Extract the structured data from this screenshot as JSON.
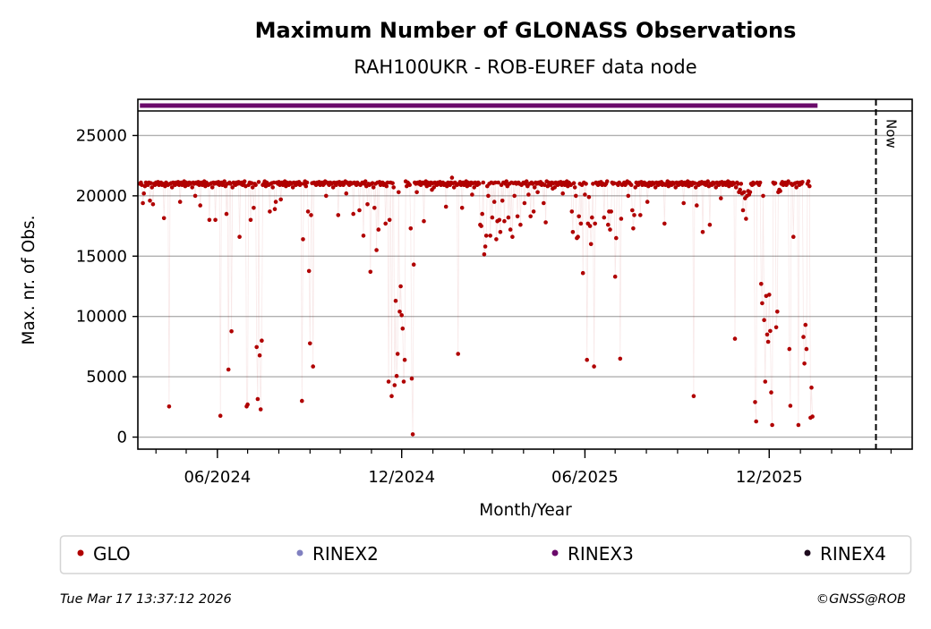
{
  "chart_data": {
    "type": "scatter",
    "title": "Maximum Number of GLONASS Observations",
    "subtitle": "RAH100UKR - ROB-EUREF data node",
    "xlabel": "Month/Year",
    "ylabel": "Max. nr. of Obs.",
    "ylim": [
      -1000,
      28000
    ],
    "xlim": [
      "2024-03-14",
      "2026-04-22"
    ],
    "yticks": [
      0,
      5000,
      10000,
      15000,
      20000,
      25000
    ],
    "ytick_labels": [
      "0",
      "5000",
      "10000",
      "15000",
      "20000",
      "25000"
    ],
    "xticks": [
      "2024-06-01",
      "2024-12-01",
      "2025-06-01",
      "2025-12-01"
    ],
    "xtick_labels": [
      "06/2024",
      "12/2024",
      "06/2025",
      "12/2025"
    ],
    "grid": "horizontal",
    "now_marker": {
      "date": "2026-03-17",
      "label": "Now"
    },
    "legend_position": "bottom",
    "legend": [
      {
        "label": "GLO",
        "color": "#b00000"
      },
      {
        "label": "RINEX2",
        "color": "#8080c0"
      },
      {
        "label": "RINEX3",
        "color": "#6a0a6a"
      },
      {
        "label": "RINEX4",
        "color": "#1e0a1e"
      }
    ],
    "rinex3_availability": {
      "start": "2024-03-16",
      "end": "2026-01-18",
      "color": "#6a0a6a"
    },
    "series": [
      {
        "name": "GLO",
        "color": "#b00000",
        "start_date": "2024-03-16",
        "step_days": 1,
        "values": [
          21000,
          21100,
          20900,
          19400,
          20200,
          20800,
          21100,
          21000,
          20900,
          21100,
          19600,
          21050,
          20700,
          19300,
          21000,
          20900,
          21100,
          21000,
          21150,
          20900,
          21000,
          21100,
          20900,
          21000,
          18150,
          20800,
          21100,
          21000,
          20900,
          2540,
          21000,
          21050,
          20700,
          21100,
          21000,
          20900,
          21100,
          21000,
          21150,
          20900,
          19500,
          21100,
          20900,
          21000,
          21200,
          20800,
          21100,
          21000,
          20900,
          21100,
          21000,
          21050,
          20700,
          21100,
          21000,
          20000,
          21100,
          21000,
          21150,
          20900,
          19200,
          21100,
          20900,
          21000,
          21200,
          20800,
          21100,
          21000,
          20900,
          18000,
          21000,
          21050,
          20700,
          21100,
          21000,
          18000,
          21100,
          21000,
          21150,
          20900,
          1770,
          21100,
          20900,
          21000,
          21200,
          20800,
          18500,
          21000,
          5600,
          21100,
          21000,
          8770,
          20700,
          21100,
          21000,
          20900,
          21100,
          21000,
          21150,
          16600,
          21000,
          21100,
          20900,
          21000,
          21200,
          20800,
          2540,
          2700,
          20900,
          21100,
          18000,
          21050,
          20700,
          19000,
          21000,
          20900,
          7460,
          3150,
          21150,
          6770,
          2300,
          8000,
          20900,
          21000,
          21200,
          20800,
          21100,
          21000,
          20900,
          18700,
          21000,
          21050,
          20700,
          21100,
          18900,
          19500,
          21100,
          21000,
          21150,
          20900,
          19700,
          21100,
          20900,
          21000,
          21200,
          20800,
          21100,
          21000,
          20900,
          21100,
          21000,
          21050,
          20700,
          21100,
          21000,
          20900,
          21100,
          21000,
          21150,
          20900,
          21000,
          3000,
          16400,
          21000,
          21200,
          20800,
          21100,
          18700,
          13770,
          7770,
          18400,
          21050,
          5850,
          21100,
          21000,
          20900,
          21100,
          21000,
          21150,
          20900,
          21000,
          21100,
          20900,
          21000,
          21200,
          20000,
          21100,
          21000,
          20900,
          21100,
          21000,
          21050,
          20700,
          21100,
          21000,
          20900,
          21100,
          18400,
          21150,
          20900,
          21000,
          21100,
          20900,
          21000,
          21200,
          20200,
          21100,
          21000,
          20900,
          21100,
          21000,
          21050,
          18500,
          21100,
          21000,
          20900,
          21100,
          21000,
          18800,
          20900,
          21000,
          21100,
          16700,
          21000,
          21200,
          20800,
          19300,
          21000,
          20900,
          13700,
          21000,
          21050,
          20700,
          19000,
          21000,
          15500,
          21100,
          17200,
          21150,
          20900,
          21000,
          21100,
          20900,
          21000,
          17700,
          20800,
          21100,
          4600,
          18000,
          21100,
          3400,
          21050,
          20700,
          4300,
          11300,
          5070,
          6900,
          20300,
          10400,
          12500,
          10100,
          9000,
          4600,
          6400,
          21200,
          20800,
          21100,
          21000,
          20900,
          17300,
          4850,
          230,
          14300,
          21100,
          21000,
          20300,
          21100,
          21000,
          21150,
          20900,
          21000,
          21100,
          17900,
          21000,
          21200,
          20800,
          21100,
          21000,
          20900,
          21100,
          20500,
          21050,
          20700,
          21100,
          21000,
          20900,
          21100,
          21000,
          21150,
          20900,
          21000,
          21100,
          20900,
          21000,
          19100,
          20800,
          21100,
          21000,
          20900,
          21100,
          21500,
          21050,
          20700,
          21100,
          21000,
          20900,
          6900,
          21000,
          21150,
          20900,
          19000,
          21100,
          20900,
          21000,
          21200,
          20800,
          21100,
          21000,
          20900,
          21100,
          20100,
          21050,
          20700,
          21100,
          21000,
          20900,
          21100,
          21000,
          17600,
          17500,
          18500,
          21100,
          15150,
          15800,
          16700,
          20800,
          20000,
          21000,
          16700,
          21100,
          18200,
          21050,
          19500,
          21100,
          16400,
          17900,
          21100,
          18000,
          17000,
          20900,
          19600,
          21100,
          17900,
          21000,
          21200,
          20800,
          18200,
          21000,
          17200,
          21100,
          16600,
          21050,
          20000,
          21100,
          21000,
          18300,
          21100,
          21000,
          17600,
          20900,
          21000,
          21100,
          19400,
          21000,
          21200,
          20800,
          20100,
          21000,
          18300,
          21100,
          21000,
          18700,
          20700,
          21100,
          21000,
          20300,
          21100,
          21000,
          21150,
          20900,
          21000,
          19400,
          20900,
          17800,
          21200,
          20800,
          21100,
          21000,
          20900,
          21100,
          20600,
          21050,
          20700,
          21100,
          21000,
          20900,
          21100,
          21000,
          21150,
          20900,
          20200,
          21100,
          20900,
          21000,
          21200,
          20800,
          21100,
          21000,
          20900,
          18700,
          17000,
          21050,
          20700,
          20000,
          16500,
          16600,
          18300,
          21000,
          17700,
          20900,
          13600,
          21100,
          20100,
          21000,
          6400,
          17700,
          19900,
          17500,
          16000,
          18200,
          21000,
          5850,
          17700,
          21100,
          21000,
          20900,
          21100,
          21000,
          21150,
          20900,
          21000,
          18200,
          20900,
          21000,
          21200,
          17600,
          18700,
          17200,
          18700,
          21100,
          21000,
          21050,
          13300,
          16500,
          21000,
          20900,
          21100,
          6500,
          18100,
          20900,
          21000,
          21100,
          20900,
          21000,
          21200,
          20000,
          21100,
          21000,
          20900,
          18800,
          17300,
          18400,
          20700,
          21100,
          21000,
          20900,
          21100,
          18400,
          21150,
          20900,
          21000,
          21100,
          20900,
          21000,
          19500,
          20800,
          21100,
          21000,
          20900,
          21100,
          21000,
          21050,
          20700,
          21100,
          21000,
          20900,
          21100,
          21000,
          21150,
          20900,
          21000,
          17700,
          20900,
          21000,
          21200,
          20800,
          21100,
          21000,
          20900,
          21100,
          21000,
          21050,
          20700,
          21100,
          21000,
          20900,
          21100,
          21000,
          21150,
          20900,
          19400,
          21100,
          20900,
          21000,
          21200,
          20800,
          21100,
          21000,
          20900,
          21100,
          3400,
          21050,
          20700,
          19200,
          21000,
          20900,
          21100,
          21000,
          21150,
          17000,
          21000,
          21100,
          20900,
          21000,
          21200,
          20800,
          17600,
          21000,
          20900,
          21100,
          21000,
          21050,
          20700,
          21100,
          21000,
          20900,
          21100,
          19800,
          21150,
          20900,
          21000,
          21100,
          20900,
          21000,
          21200,
          20800,
          21100,
          21000,
          20900,
          21100,
          21000,
          8150,
          20700,
          21100,
          21000,
          20300,
          20500,
          21000,
          20200,
          18800,
          20300,
          19800,
          18100,
          20000,
          20400,
          20100,
          20300,
          21000,
          20900,
          21100,
          21000,
          2900,
          1300,
          21100,
          21000,
          20900,
          21100,
          12700,
          11100,
          20000,
          9700,
          4600,
          11700,
          8500,
          7900,
          11800,
          8800,
          3700,
          1000,
          21100,
          21000,
          21050,
          9100,
          10400,
          20300,
          20500,
          20400,
          21000,
          21150,
          20900,
          21000,
          21100,
          20900,
          21000,
          21200,
          7300,
          2600,
          21000,
          20900,
          16600,
          21000,
          21050,
          20700,
          21100,
          1000,
          20900,
          21100,
          21000,
          21150,
          8300,
          6100,
          9300,
          7300,
          21000,
          21200,
          20800,
          1600,
          4100,
          1700
        ]
      }
    ]
  },
  "footer": {
    "timestamp": "Tue Mar 17 13:37:12 2026",
    "copyright": "©GNSS@ROB"
  }
}
